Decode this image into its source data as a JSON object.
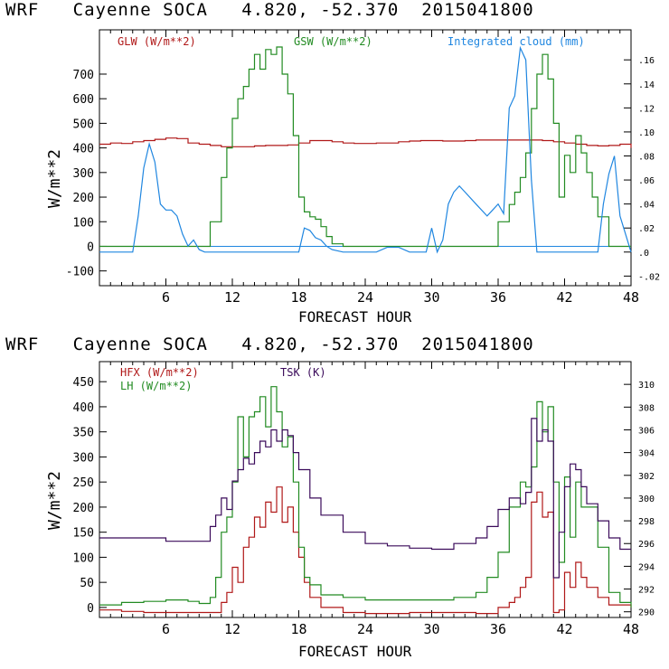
{
  "colors": {
    "red": "#b01818",
    "green": "#228b22",
    "blue": "#1f86e0",
    "purple": "#3a0a5a",
    "axis": "#000000"
  },
  "top": {
    "title": "WRF   Cayenne SOCA   4.820, -52.370  2015041800",
    "legend": {
      "glw": "GLW (W/m**2)",
      "gsw": "GSW (W/m**2)",
      "cloud": "Integrated cloud (mm)"
    },
    "ylabel": "W/m**2",
    "xlabel": "FORECAST HOUR",
    "xticks": [
      "6",
      "12",
      "18",
      "24",
      "30",
      "36",
      "42",
      "48"
    ],
    "yticks": [
      "-100",
      "0",
      "100",
      "200",
      "300",
      "400",
      "500",
      "600",
      "700"
    ],
    "rticks": [
      "-.02",
      ".0",
      ".02",
      ".04",
      ".06",
      ".08",
      ".10",
      ".12",
      ".14",
      ".16"
    ]
  },
  "bottom": {
    "title": "WRF   Cayenne SOCA   4.820, -52.370  2015041800",
    "legend": {
      "hfx": "HFX (W/m**2)",
      "lh": "LH  (W/m**2)",
      "tsk": "TSK (K)"
    },
    "ylabel": "W/m**2",
    "xlabel": "FORECAST HOUR",
    "xticks": [
      "6",
      "12",
      "18",
      "24",
      "30",
      "36",
      "42",
      "48"
    ],
    "yticks": [
      "0",
      "50",
      "100",
      "150",
      "200",
      "250",
      "300",
      "350",
      "400",
      "450"
    ],
    "rticks": [
      "290",
      "292",
      "294",
      "296",
      "298",
      "300",
      "302",
      "304",
      "306",
      "308",
      "310"
    ]
  },
  "chart_data": [
    {
      "type": "line",
      "title": "WRF   Cayenne SOCA   4.820, -52.370  2015041800",
      "xlabel": "FORECAST HOUR",
      "ylabel": "W/m**2",
      "xlim": [
        0,
        48
      ],
      "ylim": [
        -160,
        880
      ],
      "y2lim": [
        -0.028,
        0.185
      ],
      "series": [
        {
          "name": "GLW (W/m**2)",
          "axis": "left",
          "x": [
            0,
            1,
            2,
            3,
            4,
            5,
            6,
            7,
            8,
            9,
            10,
            11,
            12,
            13,
            14,
            15,
            16,
            17,
            18,
            19,
            20,
            21,
            22,
            23,
            24,
            25,
            26,
            27,
            28,
            29,
            30,
            31,
            32,
            33,
            34,
            35,
            36,
            37,
            38,
            39,
            40,
            41,
            42,
            43,
            44,
            45,
            46,
            47,
            48
          ],
          "y": [
            415,
            420,
            418,
            425,
            430,
            435,
            440,
            438,
            420,
            415,
            410,
            405,
            405,
            405,
            408,
            410,
            410,
            412,
            420,
            430,
            430,
            425,
            420,
            418,
            418,
            420,
            420,
            425,
            428,
            430,
            430,
            428,
            428,
            430,
            432,
            432,
            432,
            432,
            432,
            432,
            430,
            425,
            420,
            415,
            410,
            408,
            410,
            415,
            400
          ]
        },
        {
          "name": "GSW (W/m**2)",
          "axis": "left",
          "x": [
            0,
            9,
            10,
            11,
            11.5,
            12,
            12.5,
            13,
            13.5,
            14,
            14.5,
            15,
            15.5,
            16,
            16.5,
            17,
            17.5,
            18,
            18.5,
            19,
            19.5,
            20,
            20.5,
            21,
            22,
            35,
            36,
            37,
            37.5,
            38,
            38.5,
            39,
            39.5,
            40,
            40.5,
            41,
            41.5,
            42,
            42.5,
            43,
            43.5,
            44,
            44.5,
            45,
            46,
            48
          ],
          "y": [
            0,
            0,
            100,
            280,
            400,
            520,
            600,
            650,
            720,
            780,
            720,
            800,
            780,
            810,
            700,
            620,
            450,
            200,
            140,
            120,
            110,
            80,
            40,
            10,
            0,
            0,
            100,
            170,
            220,
            280,
            380,
            560,
            700,
            780,
            680,
            500,
            200,
            370,
            300,
            450,
            380,
            300,
            200,
            120,
            0,
            0
          ]
        },
        {
          "name": "Integrated cloud (mm)",
          "axis": "right",
          "x": [
            0,
            3,
            3.5,
            4,
            4.5,
            5,
            5.5,
            6,
            6.5,
            7,
            7.5,
            8,
            8.5,
            9,
            9.5,
            10,
            18,
            18.5,
            19,
            19.5,
            20,
            20.5,
            21,
            22,
            25,
            26,
            27,
            28,
            29.5,
            30,
            30.5,
            31,
            31.5,
            32,
            32.5,
            33,
            34,
            35,
            35.5,
            36,
            36.5,
            37,
            37.5,
            38,
            38.5,
            39,
            39.5,
            40,
            45,
            45.5,
            46,
            46.5,
            47,
            48
          ],
          "y": [
            0,
            0,
            0.03,
            0.07,
            0.09,
            0.075,
            0.04,
            0.035,
            0.035,
            0.03,
            0.015,
            0.005,
            0.01,
            0.002,
            0,
            0,
            0,
            0.02,
            0.018,
            0.012,
            0.01,
            0.005,
            0.002,
            0,
            0,
            0.004,
            0.004,
            0,
            0,
            0.02,
            0,
            0.01,
            0.04,
            0.05,
            0.055,
            0.05,
            0.04,
            0.03,
            0.035,
            0.04,
            0.032,
            0.12,
            0.13,
            0.17,
            0.16,
            0.06,
            0,
            0,
            0,
            0.04,
            0.065,
            0.08,
            0.03,
            0
          ]
        }
      ]
    },
    {
      "type": "line",
      "title": "WRF   Cayenne SOCA   4.820, -52.370  2015041800",
      "xlabel": "FORECAST HOUR",
      "ylabel": "W/m**2",
      "xlim": [
        0,
        48
      ],
      "ylim": [
        -20,
        490
      ],
      "y2lim": [
        289.5,
        312
      ],
      "series": [
        {
          "name": "HFX (W/m**2)",
          "axis": "left",
          "x": [
            0,
            2,
            4,
            6,
            8,
            10,
            11,
            11.5,
            12,
            12.5,
            13,
            13.5,
            14,
            14.5,
            15,
            15.5,
            16,
            16.5,
            17,
            17.5,
            18,
            18.5,
            19,
            20,
            22,
            24,
            28,
            30,
            32,
            34,
            36,
            37,
            37.5,
            38,
            38.5,
            39,
            39.5,
            40,
            40.5,
            41,
            41.5,
            42,
            42.5,
            43,
            43.5,
            44,
            45,
            46,
            48
          ],
          "y": [
            -5,
            -8,
            -10,
            -10,
            -10,
            -10,
            10,
            30,
            80,
            50,
            120,
            140,
            180,
            160,
            210,
            190,
            240,
            170,
            200,
            150,
            100,
            50,
            20,
            0,
            -10,
            -12,
            -10,
            -10,
            -10,
            -12,
            0,
            10,
            20,
            40,
            60,
            210,
            230,
            180,
            190,
            -10,
            -5,
            70,
            40,
            90,
            60,
            40,
            20,
            5,
            0
          ]
        },
        {
          "name": "LH  (W/m**2)",
          "axis": "left",
          "x": [
            0,
            2,
            4,
            6,
            8,
            9,
            10,
            10.5,
            11,
            11.5,
            12,
            12.5,
            13,
            13.5,
            14,
            14.5,
            15,
            15.5,
            16,
            16.5,
            17,
            17.5,
            18,
            18.5,
            19,
            20,
            22,
            24,
            28,
            30,
            32,
            34,
            35,
            36,
            37,
            38,
            38.5,
            39,
            39.5,
            40,
            40.5,
            41,
            41.5,
            42,
            42.5,
            43,
            43.5,
            44,
            45,
            46,
            47,
            48
          ],
          "y": [
            5,
            10,
            12,
            15,
            12,
            8,
            20,
            60,
            150,
            180,
            250,
            380,
            300,
            380,
            390,
            420,
            360,
            440,
            390,
            320,
            340,
            250,
            120,
            60,
            45,
            25,
            20,
            15,
            15,
            15,
            20,
            30,
            60,
            110,
            200,
            250,
            240,
            280,
            410,
            350,
            400,
            250,
            90,
            260,
            140,
            250,
            200,
            200,
            120,
            30,
            10,
            0
          ]
        },
        {
          "name": "TSK (K)",
          "axis": "right",
          "x": [
            0,
            2,
            4,
            6,
            8,
            9.5,
            10,
            10.5,
            11,
            11.5,
            12,
            12.5,
            13,
            13.5,
            14,
            14.5,
            15,
            15.5,
            16,
            16.5,
            17,
            17.5,
            18,
            19,
            20,
            22,
            24,
            26,
            28,
            30,
            32,
            34,
            35,
            36,
            37,
            38,
            38.5,
            39,
            39.5,
            40,
            40.5,
            41,
            41.5,
            42,
            42.5,
            43,
            43.5,
            44,
            45,
            46,
            47,
            48
          ],
          "y": [
            296.5,
            296.5,
            296.5,
            296.2,
            296.2,
            296.2,
            297.5,
            298.5,
            300,
            299,
            301.5,
            302.5,
            303.5,
            303,
            304,
            305,
            304.5,
            306,
            305,
            306,
            305.5,
            304,
            302.5,
            300,
            298.5,
            297,
            296,
            295.8,
            295.6,
            295.5,
            296,
            296.5,
            297.5,
            299,
            300,
            299.5,
            300.5,
            307,
            305,
            306,
            305,
            293,
            297,
            301,
            303,
            302.5,
            301,
            299.5,
            298,
            296.5,
            295.5,
            295.5
          ]
        }
      ]
    }
  ]
}
